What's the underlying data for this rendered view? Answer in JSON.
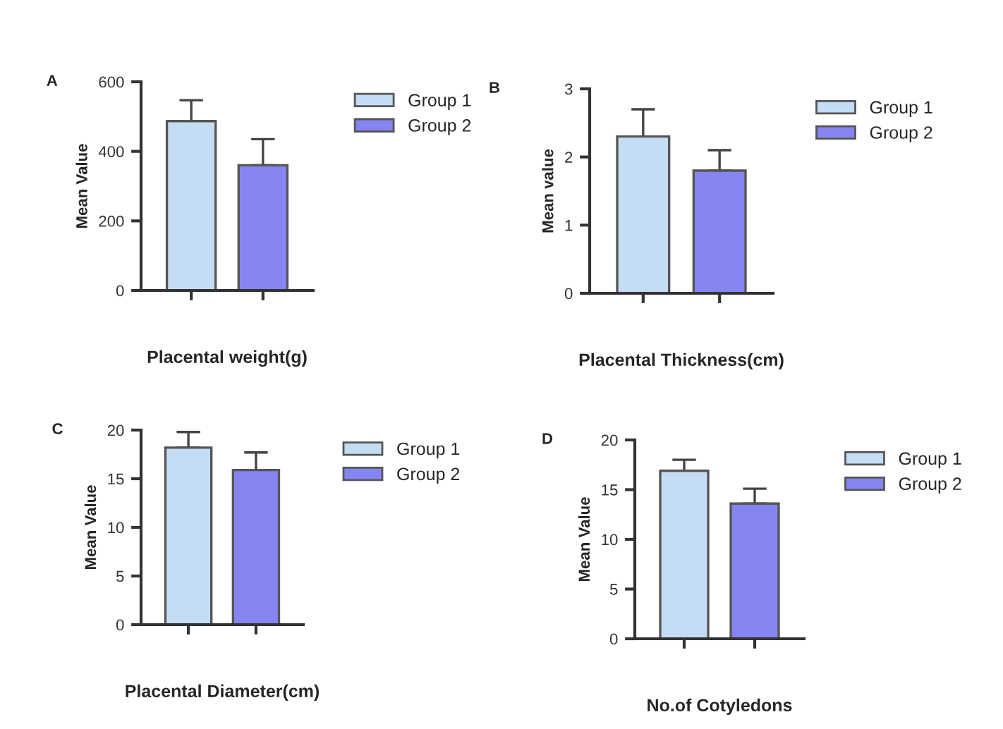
{
  "chart_data": [
    {
      "type": "bar",
      "title": "A",
      "xlabel": "Placental weight(g)",
      "ylabel": "Mean Value",
      "categories": [
        null,
        null
      ],
      "ylim": [
        0,
        600
      ],
      "yticks": [
        0,
        200,
        400,
        600
      ],
      "tick_labels": "y",
      "legend": "top right",
      "grid": false,
      "series": [
        {
          "name": "Group 1",
          "color": "#c5dcf5",
          "values": [
            487,
            null
          ],
          "errors": [
            [
              487,
              547
            ],
            null
          ]
        },
        {
          "name": "Group 2",
          "color": "#8585f2",
          "values": [
            null,
            360
          ],
          "errors": [
            null,
            [
              360,
              435
            ]
          ]
        }
      ]
    },
    {
      "type": "bar",
      "title": "B",
      "xlabel": "Placental Thickness(cm)",
      "ylabel": "Mean value",
      "categories": [
        null,
        null
      ],
      "ylim": [
        0,
        3
      ],
      "yticks": [
        0,
        1,
        2,
        3
      ],
      "tick_labels": "y",
      "legend": "top right",
      "grid": false,
      "series": [
        {
          "name": "Group 1",
          "color": "#c5dcf5",
          "values": [
            2.3,
            null
          ],
          "errors": [
            [
              2.3,
              2.7
            ],
            null
          ]
        },
        {
          "name": "Group 2",
          "color": "#8585f2",
          "values": [
            null,
            1.8
          ],
          "errors": [
            null,
            [
              1.8,
              2.1
            ]
          ]
        }
      ]
    },
    {
      "type": "bar",
      "title": "C",
      "xlabel": "Placental Diameter(cm)",
      "ylabel": "Mean Value",
      "categories": [
        null,
        null
      ],
      "ylim": [
        0,
        20
      ],
      "yticks": [
        0,
        5,
        10,
        15,
        20
      ],
      "tick_labels": "y",
      "legend": "top right",
      "grid": false,
      "series": [
        {
          "name": "Group 1",
          "color": "#c5dcf5",
          "values": [
            18.2,
            null
          ],
          "errors": [
            [
              18.2,
              19.8
            ],
            null
          ]
        },
        {
          "name": "Group 2",
          "color": "#8585f2",
          "values": [
            null,
            15.9
          ],
          "errors": [
            null,
            [
              15.9,
              17.7
            ]
          ]
        }
      ]
    },
    {
      "type": "bar",
      "title": "D",
      "xlabel": "No.of Cotyledons",
      "ylabel": "Mean Value",
      "categories": [
        null,
        null
      ],
      "ylim": [
        0,
        20
      ],
      "yticks": [
        0,
        5,
        10,
        15,
        20
      ],
      "tick_labels": "y",
      "legend": "top right",
      "grid": false,
      "series": [
        {
          "name": "Group 1",
          "color": "#c5dcf5",
          "values": [
            16.9,
            null
          ],
          "errors": [
            [
              16.9,
              18.0
            ],
            null
          ]
        },
        {
          "name": "Group 2",
          "color": "#8585f2",
          "values": [
            null,
            13.6
          ],
          "errors": [
            null,
            [
              13.6,
              15.1
            ]
          ]
        }
      ]
    }
  ]
}
